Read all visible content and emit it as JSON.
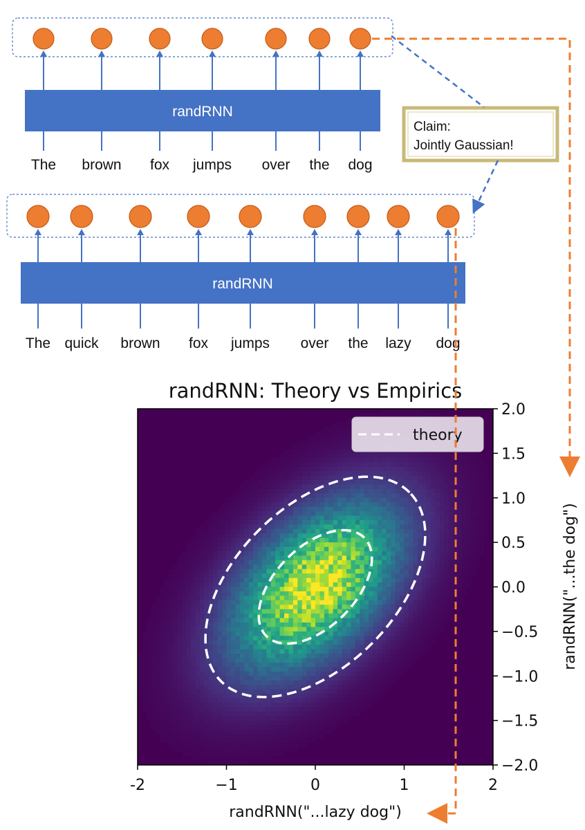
{
  "top_diagram": {
    "block_label": "randRNN",
    "words": [
      "The",
      "brown",
      "fox",
      "jumps",
      "over",
      "the",
      "dog"
    ]
  },
  "bottom_diagram": {
    "block_label": "randRNN",
    "words": [
      "The",
      "quick",
      "brown",
      "fox",
      "jumps",
      "over",
      "the",
      "lazy",
      "dog"
    ]
  },
  "claim": {
    "line1": "Claim:",
    "line2": "Jointly Gaussian!"
  },
  "colors": {
    "block": "#4472c4",
    "node": "#ed7d31",
    "node_stroke": "#c55a11",
    "claim_border": "#c9b97a",
    "orange_arrow": "#ed7d31",
    "blue_arrow": "#4472c4"
  },
  "chart_data": {
    "type": "heatmap",
    "title": "randRNN: Theory vs Empirics",
    "xlabel": "randRNN(\"...lazy dog\")",
    "ylabel": "randRNN(\"...the dog\")",
    "xlim": [
      -2,
      2
    ],
    "ylim": [
      -2,
      2
    ],
    "xticks": [
      "-2",
      "−1",
      "0",
      "1",
      "2"
    ],
    "yticks": [
      "2.0",
      "1.5",
      "1.0",
      "0.5",
      "0.0",
      "−0.5",
      "−1.0",
      "−1.5",
      "−2.0"
    ],
    "ytick_values": [
      2.0,
      1.5,
      1.0,
      0.5,
      0.0,
      -0.5,
      -1.0,
      -1.5,
      -2.0
    ],
    "xtick_values": [
      -2,
      -1,
      0,
      1,
      2
    ],
    "colormap": "viridis",
    "distribution": {
      "mean": [
        0.0,
        0.0
      ],
      "std_x": 0.6,
      "std_y": 0.6,
      "correlation": 0.5
    },
    "theory_contours": [
      {
        "label": "inner",
        "center": [
          0.0,
          0.0
        ],
        "semi_major": 0.78,
        "semi_minor": 0.45,
        "angle_deg": 45
      },
      {
        "label": "outer",
        "center": [
          0.0,
          0.0
        ],
        "semi_major": 1.5,
        "semi_minor": 0.9,
        "angle_deg": 45
      }
    ],
    "legend": {
      "entries": [
        "theory"
      ],
      "position": "top-right"
    }
  }
}
